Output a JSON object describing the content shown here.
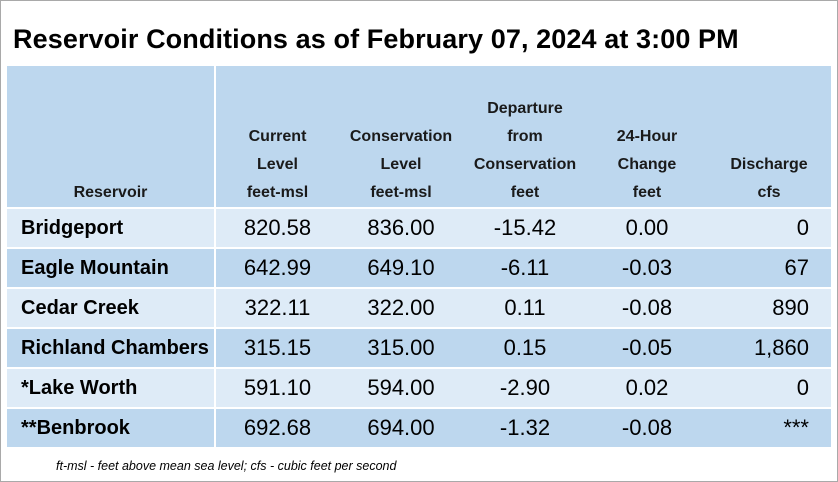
{
  "title": "Reservoir Conditions as of February 07, 2024 at 3:00 PM",
  "columns": [
    {
      "lines": [
        "Reservoir"
      ]
    },
    {
      "lines": [
        "Current",
        "Level",
        "feet-msl"
      ]
    },
    {
      "lines": [
        "Conservation",
        "Level",
        "feet-msl"
      ]
    },
    {
      "lines": [
        "Departure",
        "from",
        "Conservation",
        "feet"
      ]
    },
    {
      "lines": [
        "24-Hour",
        "Change",
        "feet"
      ]
    },
    {
      "lines": [
        "Discharge",
        "cfs"
      ]
    }
  ],
  "rows": [
    {
      "name": "Bridgeport",
      "current": "820.58",
      "conservation": "836.00",
      "departure": "-15.42",
      "change": "0.00",
      "discharge": "0"
    },
    {
      "name": "Eagle Mountain",
      "current": "642.99",
      "conservation": "649.10",
      "departure": "-6.11",
      "change": "-0.03",
      "discharge": "67"
    },
    {
      "name": "Cedar Creek",
      "current": "322.11",
      "conservation": "322.00",
      "departure": "0.11",
      "change": "-0.08",
      "discharge": "890"
    },
    {
      "name": "Richland Chambers",
      "current": "315.15",
      "conservation": "315.00",
      "departure": "0.15",
      "change": "-0.05",
      "discharge": "1,860"
    },
    {
      "name": "*Lake Worth",
      "current": "591.10",
      "conservation": "594.00",
      "departure": "-2.90",
      "change": "0.02",
      "discharge": "0"
    },
    {
      "name": "**Benbrook",
      "current": "692.68",
      "conservation": "694.00",
      "departure": "-1.32",
      "change": "-0.08",
      "discharge": "***"
    }
  ],
  "footnote": "ft-msl - feet above mean sea level; cfs - cubic feet per second",
  "colors": {
    "header_bg": "#bdd7ee",
    "row_light": "#deebf7",
    "row_dark": "#bdd7ee"
  }
}
